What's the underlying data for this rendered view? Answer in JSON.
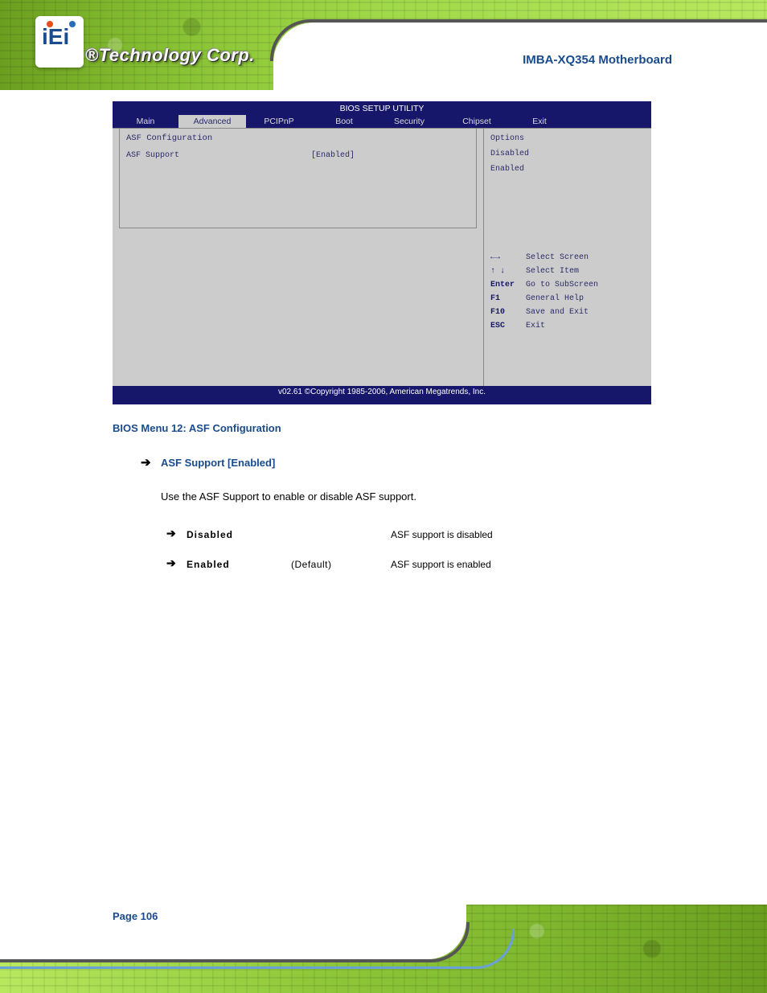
{
  "header": {
    "logo_text": "®Technology Corp.",
    "product": "IMBA-XQ354 Motherboard"
  },
  "bios": {
    "utility_title": "BIOS SETUP UTILITY",
    "tabs": [
      "Main",
      "Advanced",
      "PCIPnP",
      "Boot",
      "Security",
      "Chipset",
      "Exit"
    ],
    "active_tab": "Advanced",
    "section_title": "ASF Configuration",
    "rows": [
      {
        "label": "ASF Support",
        "value": "[Enabled]"
      }
    ],
    "help_lines": [
      "Options",
      "",
      "Disabled",
      "Enabled"
    ],
    "keys": [
      {
        "sym": "←→",
        "desc": "Select Screen"
      },
      {
        "sym": "↑ ↓",
        "desc": "Select Item"
      },
      {
        "sym": "Enter",
        "desc": "Go to SubScreen"
      },
      {
        "sym": "F1",
        "desc": "General Help"
      },
      {
        "sym": "F10",
        "desc": "Save and Exit"
      },
      {
        "sym": "ESC",
        "desc": "Exit"
      }
    ],
    "footer": "v02.61 ©Copyright 1985-2006, American Megatrends, Inc."
  },
  "caption": "BIOS Menu 12: ASF Configuration",
  "option": {
    "heading": "ASF Support [Enabled]",
    "desc": "Use the ASF Support to enable or disable ASF support.",
    "items": [
      {
        "label": "Disabled",
        "default": "",
        "text": "ASF support is disabled"
      },
      {
        "label": "Enabled",
        "default": "(Default)",
        "text": "ASF support is enabled"
      }
    ]
  },
  "page": "Page 106",
  "colors": {
    "bios_bg": "#16166b",
    "panel_bg": "#cccccc",
    "heading_blue": "#1a4b8c"
  }
}
